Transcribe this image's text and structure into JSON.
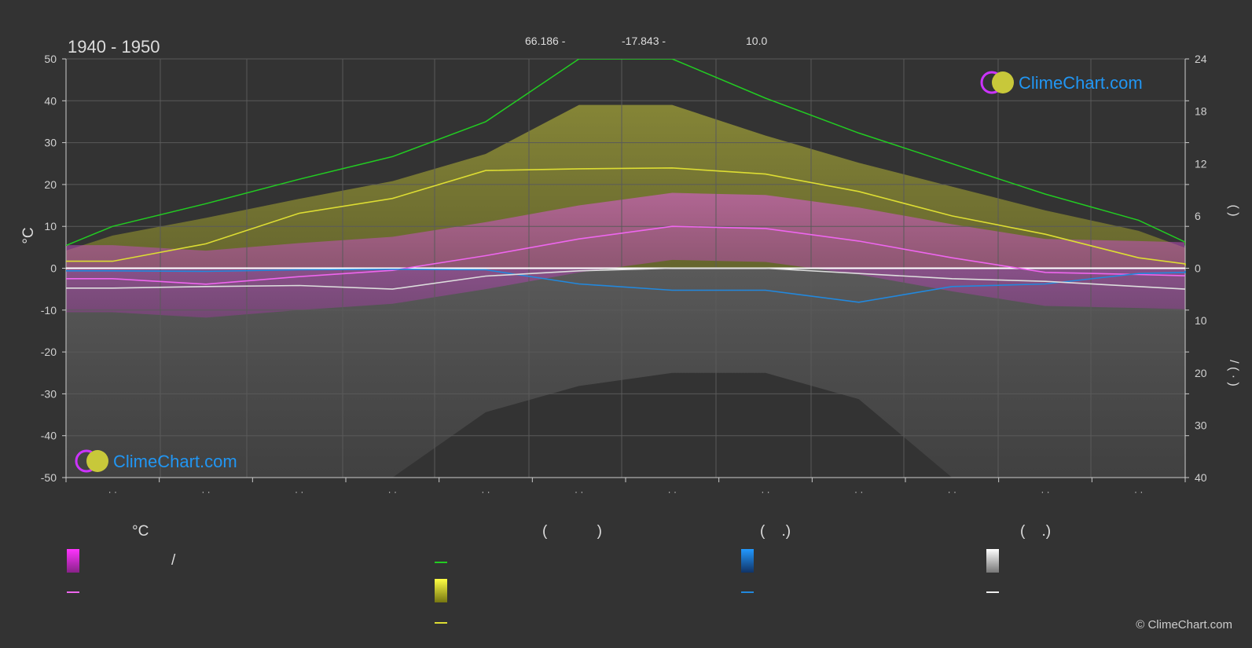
{
  "header": {
    "period": "1940 - 1950",
    "stat_left": "66.186 -",
    "stat_mid": "-17.843 -",
    "stat_right": "10.0"
  },
  "axes": {
    "left_unit": "°C",
    "left_ticks": [
      "50",
      "40",
      "30",
      "20",
      "10",
      "0",
      "-10",
      "-20",
      "-30",
      "-40",
      "-50"
    ],
    "right_top_ticks": [
      "24",
      "18",
      "12",
      "6",
      "0"
    ],
    "right_bottom_ticks": [
      "10",
      "20",
      "30",
      "40"
    ],
    "right_top_label": "(   )",
    "right_bottom_label": "/   (   ·   )",
    "month_labels": [
      "· ·",
      "· ·",
      "· ·",
      "· ·",
      "· ·",
      "· ·",
      "· ·",
      "· ·",
      "· ·",
      "· ·",
      "· ·",
      "· ·"
    ]
  },
  "watermark": "ClimeChart.com",
  "legend": {
    "col1_header": "°C",
    "col1_slash": "/",
    "col2_header": "(            )",
    "col3_header": "(    .)",
    "col4_header": "(    .)"
  },
  "copyright": "© ClimeChart.com",
  "colors": {
    "background": "#333333",
    "grid": "#5a5a5a",
    "daylight": "#22cc22",
    "sunshine": "#dddd33",
    "temp_mean": "#ee66ee",
    "temp_range": "#dd22dd",
    "rain": "#2288dd",
    "snow": "#dddddd",
    "watermark_text": "#2196f3"
  },
  "chart_data": {
    "type": "line",
    "months": 12,
    "temperature_ylim": [
      -50,
      50
    ],
    "sun_ylim": [
      0,
      24
    ],
    "precip_ylim": [
      0,
      40
    ],
    "series": [
      {
        "key": "daylight_hours",
        "values": [
          2.6,
          4.8,
          7.4,
          10.2,
          12.8,
          16.8,
          24,
          24,
          19.5,
          15.5,
          12.0,
          8.5,
          5.5,
          3.0,
          2.6
        ]
      },
      {
        "key": "sunshine_hours",
        "values": [
          0.8,
          0.8,
          2.8,
          6.3,
          8.0,
          11.2,
          11.4,
          11.5,
          10.8,
          8.8,
          6.0,
          3.9,
          1.2,
          0.5,
          0.3
        ]
      },
      {
        "key": "temp_mean",
        "values": [
          -2.5,
          -2.5,
          -3.8,
          -2.0,
          -0.5,
          3.0,
          7.0,
          10.0,
          9.5,
          6.5,
          2.5,
          -1.0,
          -1.5,
          -1.8,
          -1.8
        ]
      },
      {
        "key": "rain_mm",
        "values": [
          0.5,
          0.5,
          0.6,
          0.3,
          0.2,
          0.3,
          3.0,
          4.2,
          4.2,
          6.5,
          3.5,
          3.0,
          1.0,
          0.8,
          0.5
        ]
      },
      {
        "key": "snow_mm",
        "values": [
          3.8,
          3.8,
          3.5,
          3.3,
          4.0,
          1.5,
          0.5,
          0.0,
          0.0,
          1.0,
          2.0,
          2.5,
          3.5,
          4.0,
          4.0
        ]
      }
    ]
  }
}
